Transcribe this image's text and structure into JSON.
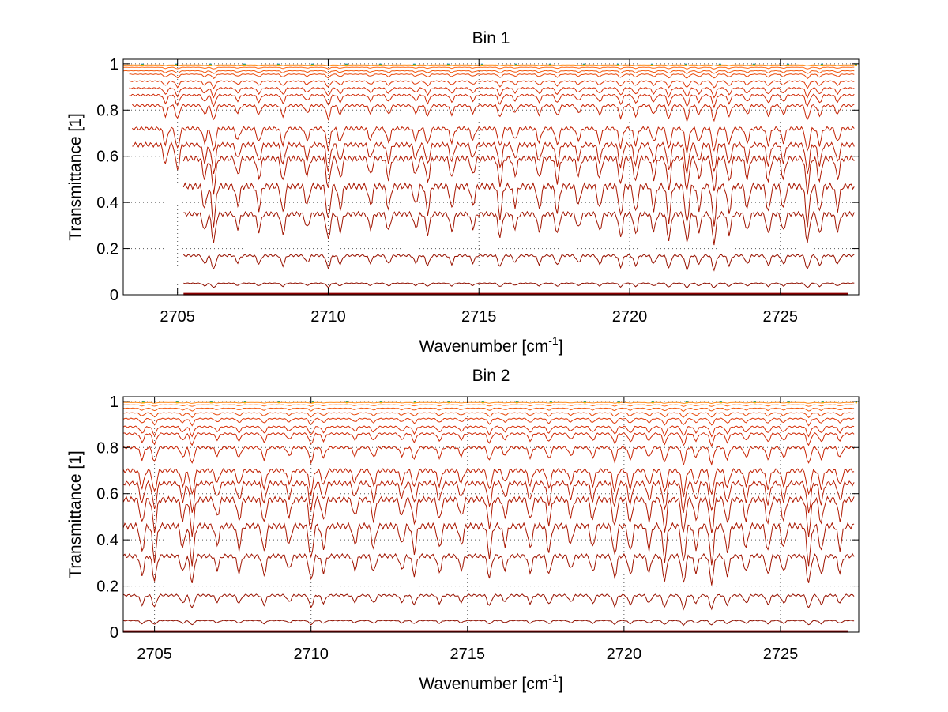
{
  "chart_data": [
    {
      "type": "line",
      "title": "Bin 1",
      "xlabel": "Wavenumber [cm",
      "xlabel_sup": "-1",
      "xlabel_end": "]",
      "ylabel": "Transmittance [1]",
      "xlim": [
        2703.2,
        2727.6
      ],
      "ylim": [
        0,
        1.02
      ],
      "xticks": [
        2705,
        2710,
        2715,
        2720,
        2725
      ],
      "xtick_labels": [
        "2705",
        "2710",
        "2715",
        "2720",
        "2725"
      ],
      "yticks": [
        0,
        0.2,
        0.4,
        0.6,
        0.8,
        1
      ],
      "ytick_labels": [
        "0",
        "0.2",
        "0.4",
        "0.6",
        "0.8",
        "1"
      ],
      "grid": true,
      "series_start_x": [
        2703.2,
        2703.2,
        2703.2,
        2703.4,
        2703.4,
        2703.4,
        2703.4,
        2703.5,
        2703.5,
        2703.5,
        2705.2,
        2705.2,
        2705.2,
        2705.2,
        2705.2
      ],
      "series_levels": [
        0.995,
        0.985,
        0.97,
        0.955,
        0.925,
        0.895,
        0.865,
        0.82,
        0.72,
        0.65,
        0.59,
        0.47,
        0.35,
        0.17,
        0.05
      ],
      "series_colors": [
        "#ff8c1a",
        "#ff6a1a",
        "#f25a10",
        "#e84a0c",
        "#e03a0a",
        "#d83008",
        "#d02a06",
        "#c82404",
        "#c02002",
        "#b81c02",
        "#b01800",
        "#a81600",
        "#a01400",
        "#981200",
        "#901000"
      ],
      "top_colors": [
        "#2e86de",
        "#18a558",
        "#ffb000"
      ],
      "baseline_color": "#8b0000"
    },
    {
      "type": "line",
      "title": "Bin 2",
      "xlabel": "Wavenumber [cm",
      "xlabel_sup": "-1",
      "xlabel_end": "]",
      "ylabel": "Transmittance [1]",
      "xlim": [
        2704.0,
        2727.5
      ],
      "ylim": [
        0,
        1.02
      ],
      "xticks": [
        2705,
        2710,
        2715,
        2720,
        2725
      ],
      "xtick_labels": [
        "2705",
        "2710",
        "2715",
        "2720",
        "2725"
      ],
      "yticks": [
        0,
        0.2,
        0.4,
        0.6,
        0.8,
        1
      ],
      "ytick_labels": [
        "0",
        "0.2",
        "0.4",
        "0.6",
        "0.8",
        "1"
      ],
      "grid": true,
      "series_start_x": [
        2704.0,
        2704.0,
        2704.0,
        2704.0,
        2704.0,
        2704.0,
        2704.0,
        2704.0,
        2704.0,
        2704.0,
        2704.0,
        2704.0,
        2704.0,
        2704.0,
        2704.0
      ],
      "series_levels": [
        0.995,
        0.985,
        0.97,
        0.95,
        0.925,
        0.89,
        0.86,
        0.8,
        0.7,
        0.645,
        0.575,
        0.46,
        0.33,
        0.16,
        0.05
      ],
      "series_colors": [
        "#ff8c1a",
        "#ff6a1a",
        "#f25a10",
        "#e84a0c",
        "#e03a0a",
        "#d83008",
        "#d02a06",
        "#c82404",
        "#c02002",
        "#b81c02",
        "#b01800",
        "#a81600",
        "#a01400",
        "#981200",
        "#901000"
      ],
      "top_colors": [
        "#2e86de",
        "#18a558",
        "#ffb000"
      ],
      "baseline_color": "#8b0000"
    }
  ]
}
